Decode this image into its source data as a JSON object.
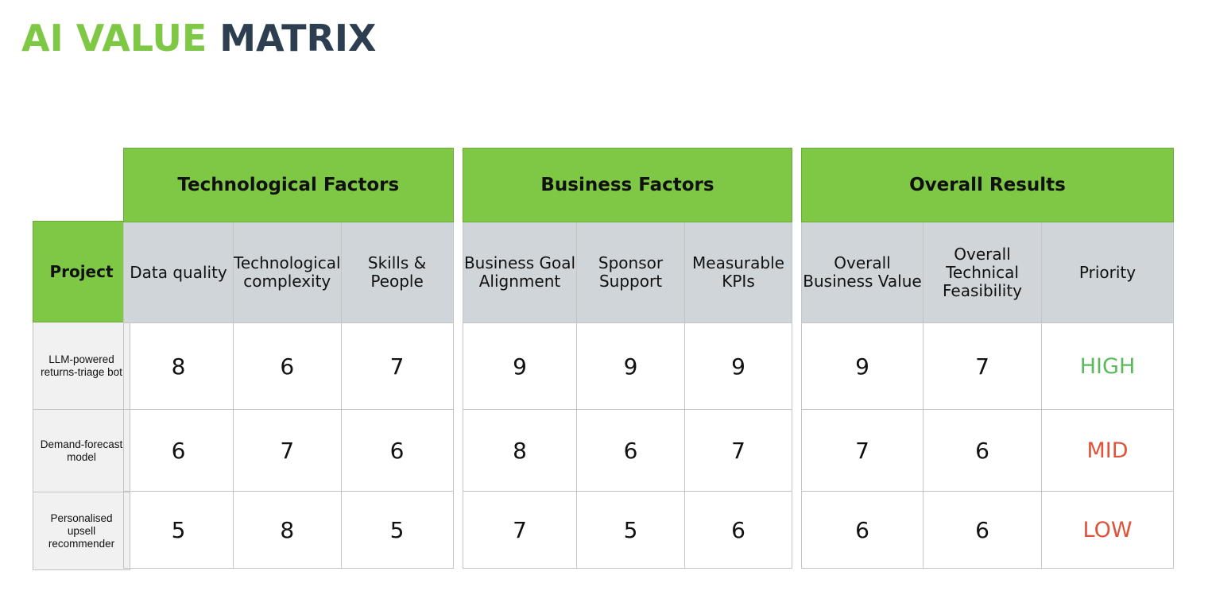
{
  "title": {
    "part1": "AI VALUE",
    "part2": "MATRIX",
    "color_green": "#7ec845",
    "color_dark": "#2c3e50"
  },
  "project_header": "Project",
  "projects": [
    "LLM-powered returns-triage bot",
    "Demand-forecast model",
    "Personalised upsell recommender"
  ],
  "groups": [
    {
      "title": "Technological Factors",
      "columns": [
        "Data quality",
        "Technological complexity",
        "Skills & People"
      ],
      "rows": [
        [
          "8",
          "6",
          "7"
        ],
        [
          "6",
          "7",
          "6"
        ],
        [
          "5",
          "8",
          "5"
        ]
      ]
    },
    {
      "title": "Business Factors",
      "columns": [
        "Business Goal Alignment",
        "Sponsor Support",
        "Measurable KPIs"
      ],
      "rows": [
        [
          "9",
          "9",
          "9"
        ],
        [
          "8",
          "6",
          "7"
        ],
        [
          "7",
          "5",
          "6"
        ]
      ]
    },
    {
      "title": "Overall Results",
      "columns": [
        "Overall Business Value",
        "Overall Technical Feasibility",
        "Priority"
      ],
      "rows": [
        [
          "9",
          "7",
          "HIGH"
        ],
        [
          "7",
          "6",
          "MID"
        ],
        [
          "6",
          "6",
          "LOW"
        ]
      ]
    }
  ],
  "priority_colors": {
    "HIGH": "#5cb85c",
    "MID": "#e0533a",
    "LOW": "#e0533a"
  }
}
